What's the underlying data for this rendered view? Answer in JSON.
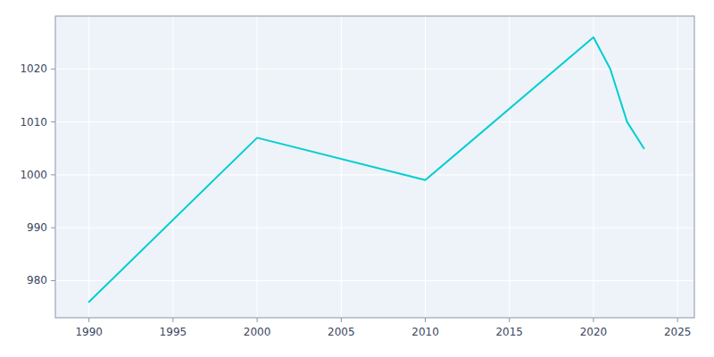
{
  "chart_data": {
    "type": "line",
    "x": [
      1990,
      2000,
      2010,
      2020,
      2021,
      2022,
      2023
    ],
    "values": [
      976,
      1007,
      999,
      1026,
      1020,
      1010,
      1005
    ],
    "color": "#00CED1",
    "xlim": [
      1988,
      2026
    ],
    "ylim": [
      973,
      1030
    ],
    "xticks": [
      1990,
      1995,
      2000,
      2005,
      2010,
      2015,
      2020,
      2025
    ],
    "yticks": [
      980,
      990,
      1000,
      1010,
      1020
    ],
    "grid": true
  }
}
